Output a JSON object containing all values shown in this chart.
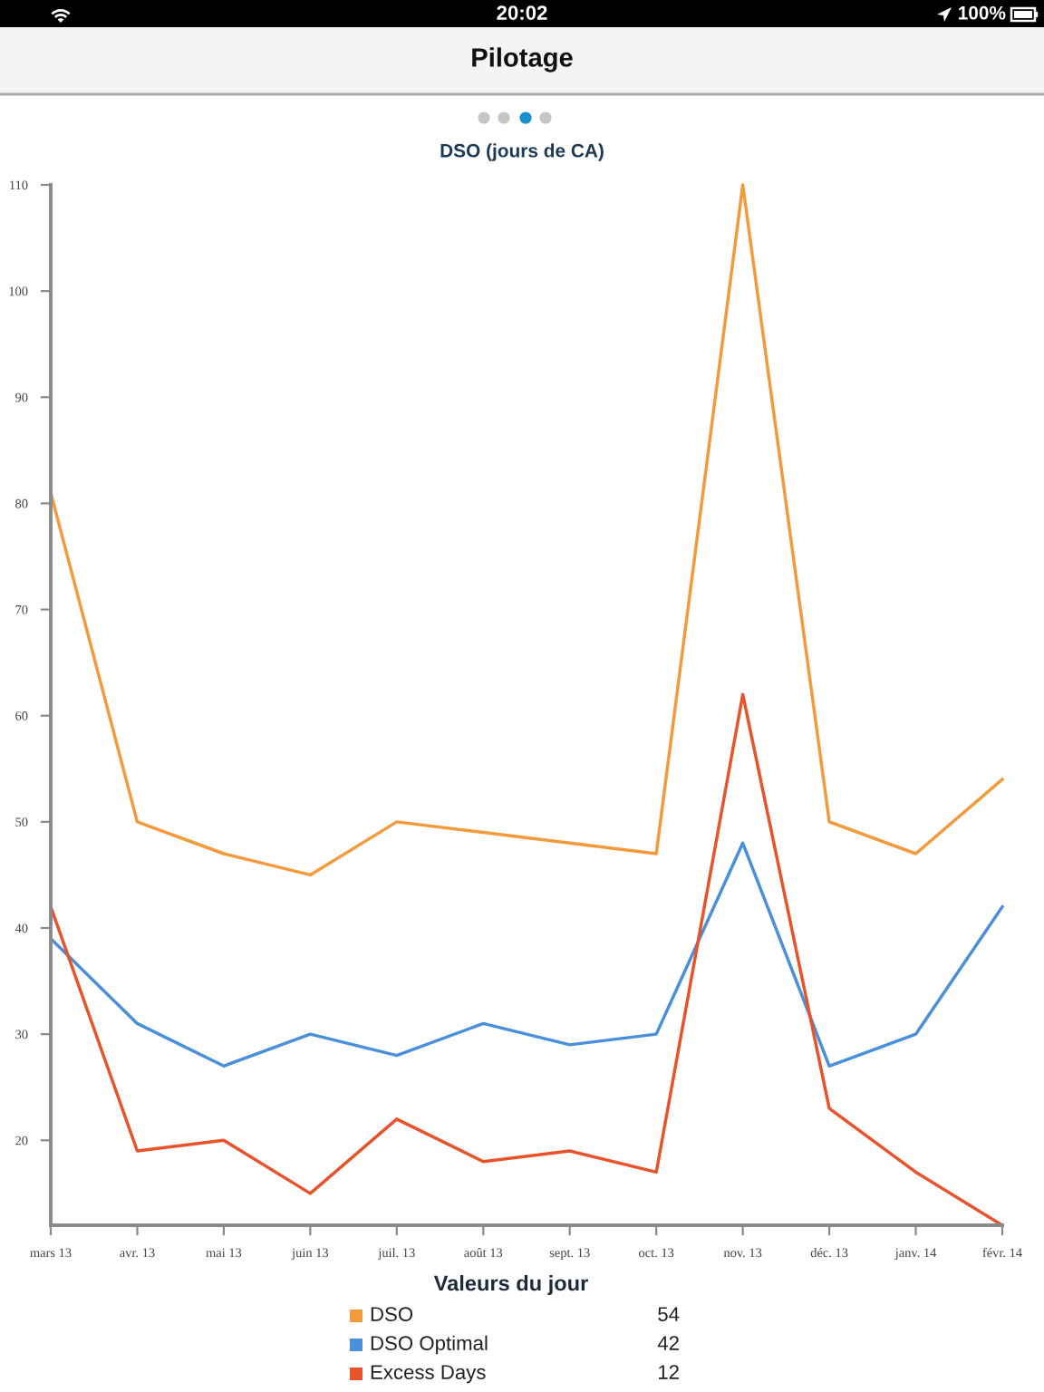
{
  "chart_data": {
    "type": "line",
    "title": "Pilotage",
    "subtitle": "DSO (jours de CA)",
    "legend_title": "Valeurs du jour",
    "legend": "bottom",
    "categories": [
      "mars 13",
      "avr. 13",
      "mai 13",
      "juin 13",
      "juil. 13",
      "août 13",
      "sept. 13",
      "oct. 13",
      "nov. 13",
      "déc. 13",
      "janv. 14",
      "févr. 14"
    ],
    "series": [
      {
        "name": "DSO",
        "color": "#f39a3c",
        "values": [
          81,
          50,
          47,
          45,
          50,
          49,
          48,
          47,
          110,
          50,
          47,
          54
        ]
      },
      {
        "name": "DSO Optimal",
        "color": "#4a8fd9",
        "values": [
          39,
          31,
          27,
          30,
          28,
          31,
          29,
          30,
          48,
          27,
          30,
          42
        ]
      },
      {
        "name": "Excess Days",
        "color": "#e8532b",
        "values": [
          42,
          19,
          20,
          15,
          22,
          18,
          19,
          17,
          62,
          23,
          17,
          12
        ]
      }
    ],
    "ylim": [
      12,
      110
    ],
    "yticks": [
      20,
      30,
      40,
      50,
      60,
      70,
      80,
      90,
      100,
      110
    ],
    "annotations": [
      "20:02",
      "100%",
      "54",
      "42",
      "12"
    ]
  }
}
